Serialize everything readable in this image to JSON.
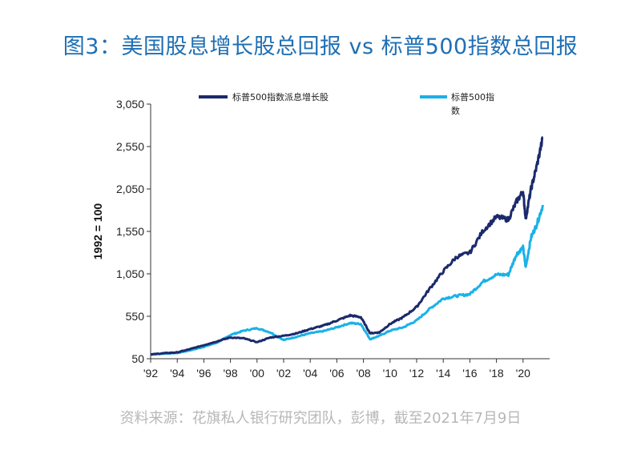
{
  "title": "图3：美国股息增长股总回报 vs 标普500指数总回报",
  "source": "资料来源：花旗私人银行研究团队，彭博，截至2021年7月9日",
  "chart_data": {
    "type": "line",
    "ylabel": "1992 = 100",
    "ylim": [
      50,
      3050
    ],
    "yticks": [
      50,
      550,
      1050,
      1550,
      2050,
      2550,
      3050
    ],
    "ytick_labels": [
      "50",
      "550",
      "1,050",
      "1,550",
      "2,050",
      "2,550",
      "3,050"
    ],
    "xlim": [
      1992,
      2022
    ],
    "xticks": [
      1992,
      1994,
      1996,
      1998,
      2000,
      2002,
      2004,
      2006,
      2008,
      2010,
      2012,
      2014,
      2016,
      2018,
      2020
    ],
    "xtick_labels": [
      "'92",
      "'94",
      "'96",
      "'98",
      "'00",
      "'02",
      "'04",
      "'06",
      "'08",
      "'10",
      "'12",
      "'14",
      "'16",
      "'18",
      "'20"
    ],
    "grid": false,
    "legend_position": "top",
    "series": [
      {
        "name": "标普500指数派息增长股",
        "color": "#1b2a6b",
        "x": [
          1992,
          1993,
          1994,
          1995,
          1996,
          1997,
          1998,
          1999,
          2000,
          2001,
          2002,
          2003,
          2004,
          2005,
          2006,
          2007,
          2007.8,
          2008.5,
          2009.2,
          2010,
          2011,
          2012,
          2013,
          2014,
          2015,
          2016,
          2017,
          2018,
          2018.9,
          2019.5,
          2020.0,
          2020.2,
          2020.6,
          2021.0,
          2021.5
        ],
        "y": [
          100,
          115,
          125,
          165,
          210,
          255,
          300,
          290,
          245,
          300,
          320,
          350,
          400,
          440,
          500,
          560,
          540,
          350,
          360,
          460,
          540,
          660,
          880,
          1080,
          1250,
          1300,
          1560,
          1720,
          1690,
          1900,
          2020,
          1700,
          2050,
          2300,
          2660
        ]
      },
      {
        "name": "标普500指数",
        "color": "#1ab1e8",
        "x": [
          1992,
          1993,
          1994,
          1995,
          1996,
          1997,
          1998,
          1999,
          2000,
          2001,
          2002,
          2003,
          2004,
          2005,
          2006,
          2007,
          2007.8,
          2008.5,
          2009.2,
          2010,
          2011,
          2012,
          2013,
          2014,
          2015,
          2016,
          2017,
          2018,
          2018.9,
          2019.5,
          2020.0,
          2020.2,
          2020.6,
          2021.0,
          2021.5
        ],
        "y": [
          100,
          110,
          118,
          150,
          190,
          240,
          330,
          380,
          410,
          360,
          270,
          310,
          350,
          375,
          420,
          470,
          460,
          280,
          320,
          380,
          420,
          500,
          640,
          760,
          790,
          810,
          960,
          1040,
          1040,
          1280,
          1360,
          1130,
          1480,
          1620,
          1860
        ]
      }
    ]
  }
}
